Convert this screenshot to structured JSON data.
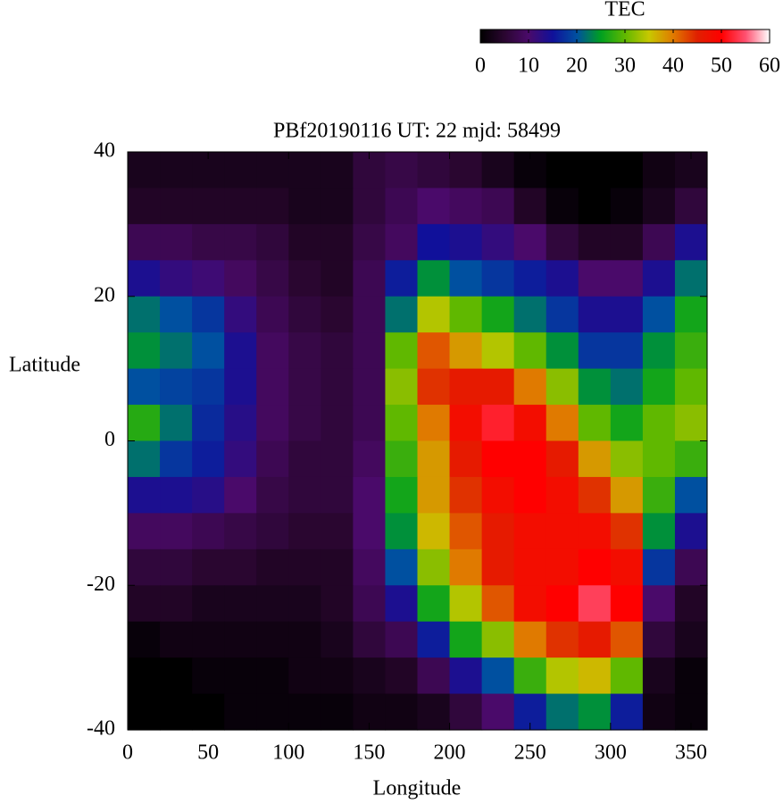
{
  "chart_data": {
    "type": "heatmap",
    "title": "PBf20190116  UT: 22  mjd: 58499",
    "x_label": "Longitude",
    "y_label": "Latitude",
    "colorbar_label": "TEC",
    "x": [
      10,
      30,
      50,
      70,
      90,
      110,
      130,
      150,
      170,
      190,
      210,
      230,
      250,
      270,
      290,
      310,
      330,
      350
    ],
    "y": [
      37.5,
      32.5,
      27.5,
      22.5,
      17.5,
      12.5,
      7.5,
      2.5,
      -2.5,
      -7.5,
      -12.5,
      -17.5,
      -22.5,
      -27.5,
      -32.5,
      -37.5
    ],
    "z": [
      [
        3,
        3,
        3,
        3,
        3,
        3,
        3,
        6,
        7,
        6,
        5,
        3,
        1,
        0,
        0,
        0,
        2,
        3
      ],
      [
        4,
        4,
        4,
        4,
        4,
        3,
        3,
        6,
        8,
        10,
        9,
        8,
        4,
        1,
        0,
        1,
        3,
        6
      ],
      [
        8,
        8,
        7,
        7,
        6,
        4,
        4,
        7,
        9,
        15,
        14,
        12,
        10,
        6,
        4,
        4,
        8,
        14
      ],
      [
        14,
        12,
        11,
        9,
        7,
        5,
        4,
        8,
        16,
        24,
        20,
        18,
        16,
        14,
        10,
        10,
        14,
        22
      ],
      [
        22,
        20,
        18,
        12,
        8,
        6,
        5,
        8,
        22,
        34,
        30,
        26,
        22,
        18,
        14,
        14,
        20,
        26
      ],
      [
        24,
        22,
        20,
        14,
        9,
        7,
        6,
        8,
        30,
        42,
        38,
        34,
        30,
        24,
        18,
        18,
        24,
        28
      ],
      [
        20,
        19,
        18,
        14,
        9,
        7,
        6,
        8,
        32,
        44,
        46,
        46,
        40,
        32,
        24,
        22,
        26,
        30
      ],
      [
        27,
        22,
        17,
        13,
        9,
        7,
        6,
        8,
        30,
        40,
        48,
        52,
        48,
        40,
        30,
        26,
        30,
        32
      ],
      [
        22,
        18,
        16,
        12,
        8,
        6,
        6,
        9,
        28,
        38,
        46,
        50,
        50,
        46,
        38,
        32,
        30,
        28
      ],
      [
        14,
        14,
        13,
        10,
        7,
        6,
        6,
        10,
        26,
        38,
        44,
        48,
        50,
        48,
        44,
        38,
        28,
        20
      ],
      [
        9,
        9,
        8,
        7,
        6,
        5,
        5,
        10,
        24,
        36,
        42,
        46,
        48,
        48,
        48,
        44,
        24,
        14
      ],
      [
        6,
        6,
        5,
        5,
        4,
        4,
        4,
        9,
        20,
        32,
        40,
        46,
        48,
        48,
        50,
        48,
        18,
        8
      ],
      [
        4,
        4,
        3,
        3,
        3,
        3,
        4,
        8,
        14,
        26,
        34,
        42,
        48,
        50,
        54,
        50,
        10,
        4
      ],
      [
        1,
        2,
        2,
        2,
        2,
        2,
        3,
        6,
        8,
        16,
        26,
        32,
        40,
        44,
        46,
        42,
        6,
        3
      ],
      [
        0,
        0,
        1,
        1,
        1,
        2,
        2,
        3,
        4,
        8,
        14,
        20,
        28,
        34,
        36,
        30,
        3,
        1
      ],
      [
        0,
        0,
        0,
        1,
        1,
        1,
        1,
        2,
        2,
        3,
        6,
        10,
        16,
        22,
        24,
        16,
        2,
        1
      ]
    ],
    "xlim": [
      0,
      360
    ],
    "ylim": [
      -40,
      40
    ],
    "xticks": [
      0,
      50,
      100,
      150,
      200,
      250,
      300,
      350
    ],
    "yticks": [
      -40,
      -20,
      0,
      20,
      40
    ],
    "clim": [
      0,
      60
    ],
    "cticks": [
      0,
      10,
      20,
      30,
      40,
      50,
      60
    ],
    "colormap": [
      {
        "value": 0,
        "color": "#000000"
      },
      {
        "value": 5,
        "color": "#2a0630"
      },
      {
        "value": 10,
        "color": "#4a0a6a"
      },
      {
        "value": 15,
        "color": "#10109a"
      },
      {
        "value": 20,
        "color": "#0050a0"
      },
      {
        "value": 25,
        "color": "#00a020"
      },
      {
        "value": 30,
        "color": "#60b800"
      },
      {
        "value": 35,
        "color": "#c8c800"
      },
      {
        "value": 40,
        "color": "#e07a00"
      },
      {
        "value": 45,
        "color": "#e02000"
      },
      {
        "value": 50,
        "color": "#ff0000"
      },
      {
        "value": 55,
        "color": "#ff5070"
      },
      {
        "value": 60,
        "color": "#ffffff"
      }
    ]
  }
}
